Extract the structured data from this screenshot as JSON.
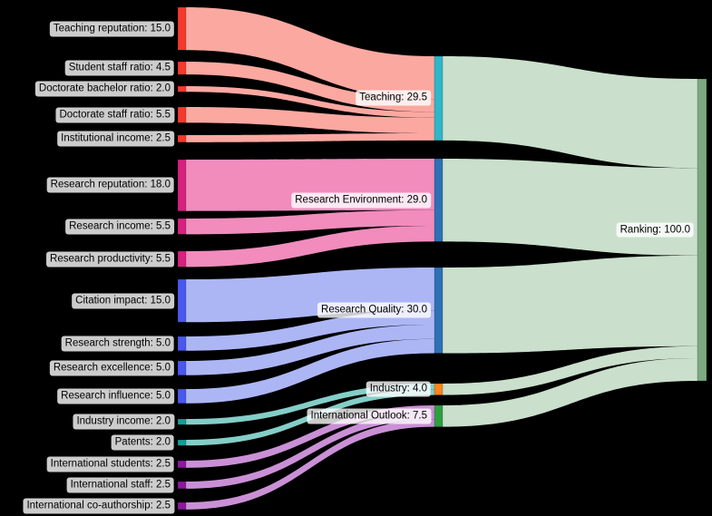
{
  "app": {
    "background": "#000000"
  },
  "chart_data": {
    "type": "sankey",
    "title": "",
    "orientation": "horizontal",
    "total_label": "Ranking: 100.0",
    "palette": {
      "teaching_node": "#f5392d",
      "teaching_flow": "#fba8a1",
      "research_env_node": "#d6217f",
      "research_env_flow": "#f18cbd",
      "research_quality_node": "#4a58ee",
      "research_quality_flow": "#adb6f4",
      "industry_node": "#149e96",
      "industry_flow": "#84cec8",
      "international_node": "#8d18a0",
      "international_flow": "#ca90d6",
      "teaching_pillar_node": "#2eb7c9",
      "research_env_pillar_node": "#2e70b4",
      "research_quality_pillar_node": "#2e70b4",
      "industry_pillar_node": "#f8861b",
      "international_pillar_node": "#2f9e41",
      "ranking_node": "#7baa80",
      "ranking_flow": "#cadfcc",
      "label_background": "rgba(255,255,255,0.8)",
      "label_text": "#000000"
    },
    "nodes": [
      {
        "id": "teaching_reputation",
        "label": "Teaching reputation: 15.0",
        "value": 15.0,
        "column": "left",
        "color": "#f5392d",
        "flow_color": "#fba8a1"
      },
      {
        "id": "student_staff_ratio",
        "label": "Student staff ratio: 4.5",
        "value": 4.5,
        "column": "left",
        "color": "#f5392d",
        "flow_color": "#fba8a1"
      },
      {
        "id": "doctorate_bachelor_ratio",
        "label": "Doctorate bachelor ratio: 2.0",
        "value": 2.0,
        "column": "left",
        "color": "#f5392d",
        "flow_color": "#fba8a1"
      },
      {
        "id": "doctorate_staff_ratio",
        "label": "Doctorate staff ratio: 5.5",
        "value": 5.5,
        "column": "left",
        "color": "#f5392d",
        "flow_color": "#fba8a1"
      },
      {
        "id": "institutional_income",
        "label": "Institutional income: 2.5",
        "value": 2.5,
        "column": "left",
        "color": "#f5392d",
        "flow_color": "#fba8a1"
      },
      {
        "id": "research_reputation",
        "label": "Research reputation: 18.0",
        "value": 18.0,
        "column": "left",
        "color": "#d6217f",
        "flow_color": "#f18cbd"
      },
      {
        "id": "research_income",
        "label": "Research income: 5.5",
        "value": 5.5,
        "column": "left",
        "color": "#d6217f",
        "flow_color": "#f18cbd"
      },
      {
        "id": "research_productivity",
        "label": "Research productivity: 5.5",
        "value": 5.5,
        "column": "left",
        "color": "#d6217f",
        "flow_color": "#f18cbd"
      },
      {
        "id": "citation_impact",
        "label": "Citation impact: 15.0",
        "value": 15.0,
        "column": "left",
        "color": "#4a58ee",
        "flow_color": "#adb6f4"
      },
      {
        "id": "research_strength",
        "label": "Research strength: 5.0",
        "value": 5.0,
        "column": "left",
        "color": "#4a58ee",
        "flow_color": "#adb6f4"
      },
      {
        "id": "research_excellence",
        "label": "Research excellence: 5.0",
        "value": 5.0,
        "column": "left",
        "color": "#4a58ee",
        "flow_color": "#adb6f4"
      },
      {
        "id": "research_influence",
        "label": "Research influence: 5.0",
        "value": 5.0,
        "column": "left",
        "color": "#4a58ee",
        "flow_color": "#adb6f4"
      },
      {
        "id": "industry_income",
        "label": "Industry income: 2.0",
        "value": 2.0,
        "column": "left",
        "color": "#149e96",
        "flow_color": "#84cec8"
      },
      {
        "id": "patents",
        "label": "Patents: 2.0",
        "value": 2.0,
        "column": "left",
        "color": "#149e96",
        "flow_color": "#84cec8"
      },
      {
        "id": "international_students",
        "label": "International students: 2.5",
        "value": 2.5,
        "column": "left",
        "color": "#8d18a0",
        "flow_color": "#ca90d6"
      },
      {
        "id": "international_staff",
        "label": "International staff: 2.5",
        "value": 2.5,
        "column": "left",
        "color": "#8d18a0",
        "flow_color": "#ca90d6"
      },
      {
        "id": "international_coauthorship",
        "label": "International co-authorship: 2.5",
        "value": 2.5,
        "column": "left",
        "color": "#8d18a0",
        "flow_color": "#ca90d6"
      },
      {
        "id": "teaching",
        "label": "Teaching: 29.5",
        "value": 29.5,
        "column": "middle",
        "color": "#2eb7c9",
        "flow_color": "#cadfcc"
      },
      {
        "id": "research_environment",
        "label": "Research Environment: 29.0",
        "value": 29.0,
        "column": "middle",
        "color": "#2e70b4",
        "flow_color": "#cadfcc"
      },
      {
        "id": "research_quality",
        "label": "Research Quality: 30.0",
        "value": 30.0,
        "column": "middle",
        "color": "#2e70b4",
        "flow_color": "#cadfcc"
      },
      {
        "id": "industry",
        "label": "Industry: 4.0",
        "value": 4.0,
        "column": "middle",
        "color": "#f8861b",
        "flow_color": "#cadfcc"
      },
      {
        "id": "international_outlook",
        "label": "International Outlook: 7.5",
        "value": 7.5,
        "column": "middle",
        "color": "#2f9e41",
        "flow_color": "#cadfcc"
      },
      {
        "id": "ranking",
        "label": "Ranking: 100.0",
        "value": 100.0,
        "column": "right",
        "color": "#7baa80",
        "flow_color": "#cadfcc"
      }
    ],
    "links": [
      {
        "source": "teaching_reputation",
        "target": "teaching",
        "value": 15.0
      },
      {
        "source": "student_staff_ratio",
        "target": "teaching",
        "value": 4.5
      },
      {
        "source": "doctorate_bachelor_ratio",
        "target": "teaching",
        "value": 2.0
      },
      {
        "source": "doctorate_staff_ratio",
        "target": "teaching",
        "value": 5.5
      },
      {
        "source": "institutional_income",
        "target": "teaching",
        "value": 2.5
      },
      {
        "source": "research_reputation",
        "target": "research_environment",
        "value": 18.0
      },
      {
        "source": "research_income",
        "target": "research_environment",
        "value": 5.5
      },
      {
        "source": "research_productivity",
        "target": "research_environment",
        "value": 5.5
      },
      {
        "source": "citation_impact",
        "target": "research_quality",
        "value": 15.0
      },
      {
        "source": "research_strength",
        "target": "research_quality",
        "value": 5.0
      },
      {
        "source": "research_excellence",
        "target": "research_quality",
        "value": 5.0
      },
      {
        "source": "research_influence",
        "target": "research_quality",
        "value": 5.0
      },
      {
        "source": "industry_income",
        "target": "industry",
        "value": 2.0
      },
      {
        "source": "patents",
        "target": "industry",
        "value": 2.0
      },
      {
        "source": "international_students",
        "target": "international_outlook",
        "value": 2.5
      },
      {
        "source": "international_staff",
        "target": "international_outlook",
        "value": 2.5
      },
      {
        "source": "international_coauthorship",
        "target": "international_outlook",
        "value": 2.5
      },
      {
        "source": "teaching",
        "target": "ranking",
        "value": 29.5
      },
      {
        "source": "research_environment",
        "target": "ranking",
        "value": 29.0
      },
      {
        "source": "research_quality",
        "target": "ranking",
        "value": 30.0
      },
      {
        "source": "industry",
        "target": "ranking",
        "value": 4.0
      },
      {
        "source": "international_outlook",
        "target": "ranking",
        "value": 7.5
      }
    ]
  }
}
